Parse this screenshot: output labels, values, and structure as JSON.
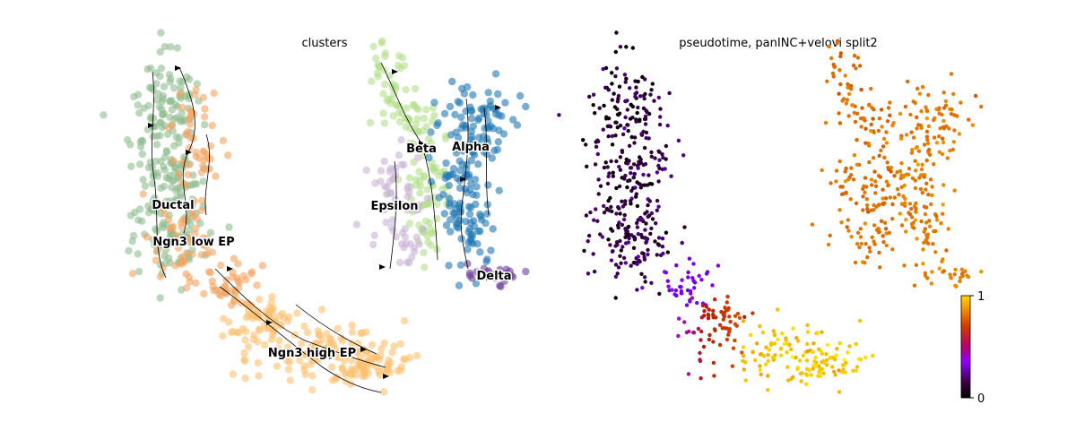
{
  "chart_data": [
    {
      "type": "scatter",
      "title": "clusters",
      "xlabel": "",
      "ylabel": "",
      "grid": false,
      "legend": "on data",
      "overlay": "velocity streamlines with arrows",
      "clusters": [
        {
          "name": "Ductal",
          "color": "#8fbc8f"
        },
        {
          "name": "Ngn3 low EP",
          "color": "#f4a460"
        },
        {
          "name": "Ngn3 high EP",
          "color": "#fdbf6f"
        },
        {
          "name": "Beta",
          "color": "#b2df8a"
        },
        {
          "name": "Alpha",
          "color": "#1f78b4"
        },
        {
          "name": "Epsilon",
          "color": "#cab2d6"
        },
        {
          "name": "Delta",
          "color": "#6a3d9a"
        }
      ]
    },
    {
      "type": "scatter",
      "title": "pseudotime, panINC+velovi split2",
      "xlabel": "",
      "ylabel": "",
      "grid": false,
      "colorbar": {
        "min": 0,
        "max": 1,
        "colormap": "gnuplot",
        "ticks": [
          "0",
          "1"
        ]
      }
    }
  ]
}
